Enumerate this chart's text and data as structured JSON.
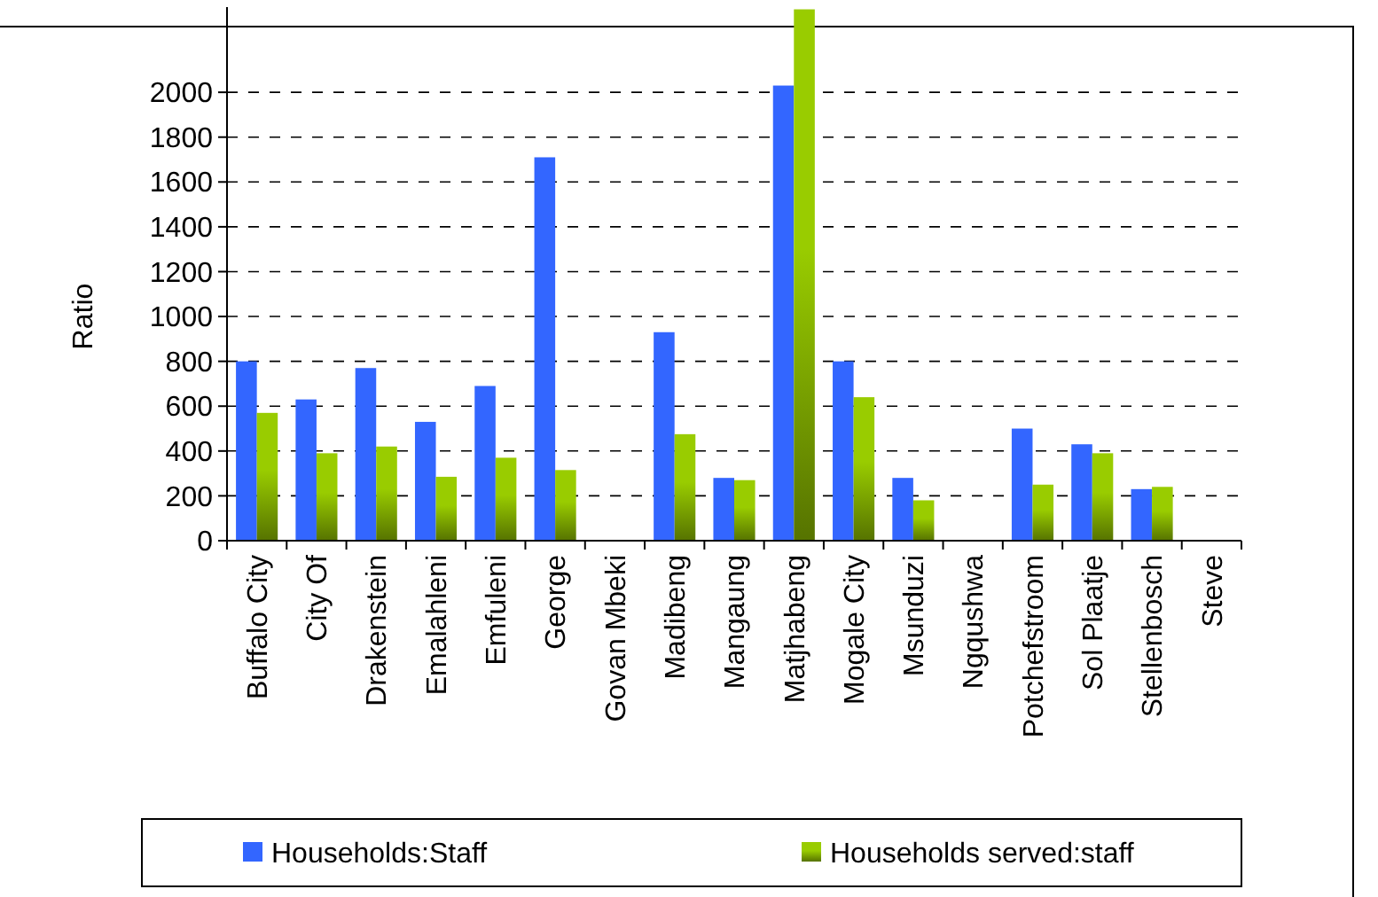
{
  "chart_data": {
    "type": "bar",
    "ylabel": "Ratio",
    "categories": [
      "Buffalo City",
      "City Of",
      "Drakenstein",
      "Emalahleni",
      "Emfuleni",
      "George",
      "Govan Mbeki",
      "Madibeng",
      "Mangaung",
      "Matjhabeng",
      "Mogale City",
      "Msunduzi",
      "Ngqushwa",
      "Potchefstroom",
      "Sol Plaatje",
      "Stellenbosch",
      "Steve"
    ],
    "series": [
      {
        "name": "Households:Staff",
        "color": "#3366ff",
        "values": [
          800,
          630,
          770,
          530,
          690,
          1710,
          null,
          930,
          280,
          2030,
          800,
          280,
          null,
          500,
          430,
          230,
          null
        ]
      },
      {
        "name": "Households served:staff",
        "color": "#99cc00",
        "values": [
          570,
          390,
          420,
          285,
          370,
          315,
          null,
          475,
          270,
          2370,
          640,
          180,
          null,
          250,
          390,
          240,
          null
        ]
      }
    ],
    "ylim": [
      0,
      2380
    ],
    "yticks": [
      0,
      200,
      400,
      600,
      800,
      1000,
      1200,
      1400,
      1600,
      1800,
      2000
    ],
    "grid": "y",
    "legend": "bottom"
  }
}
